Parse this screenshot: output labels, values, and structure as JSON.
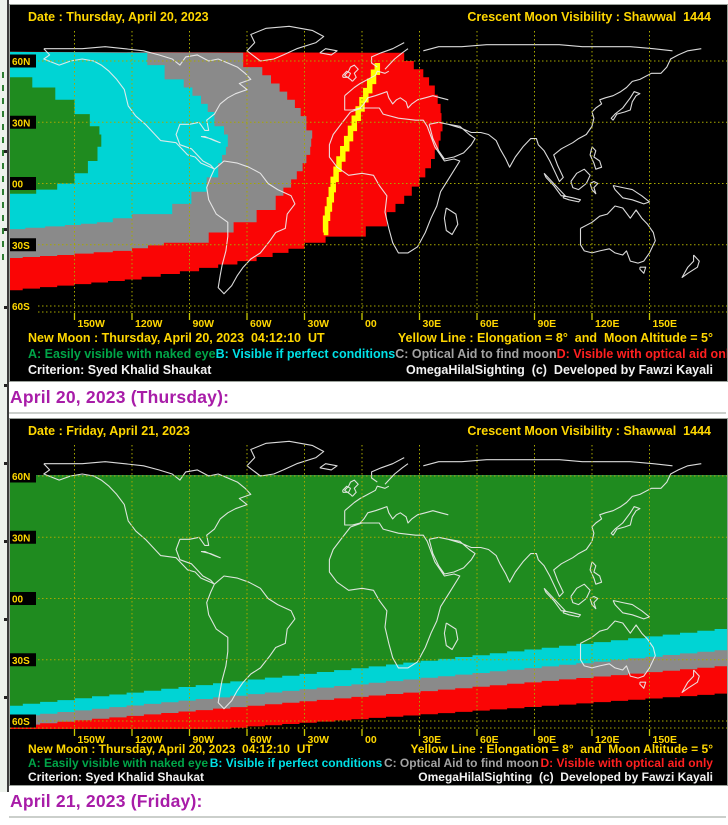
{
  "page": {
    "background": "#ffffff"
  },
  "maps": [
    {
      "header": {
        "date": "Date : Thursday, April 20, 2023",
        "title": "Crescent Moon Visibility : Shawwal  1444"
      },
      "caption": "April 20, 2023 (Thursday):"
    },
    {
      "header": {
        "date": "Date : Friday, April 21, 2023",
        "title": "Crescent Moon Visibility : Shawwal  1444"
      },
      "caption": "April 21, 2023 (Friday):"
    }
  ],
  "footer": {
    "new_moon": "New Moon : Thursday, April 20, 2023  04:12:10  UT",
    "yellow_line": "Yellow Line : Elongation = 8°  and  Moon Altitude = 5°",
    "legend": [
      {
        "key": "A",
        "label": "A: Easily visible with naked eye",
        "color": "#00a548"
      },
      {
        "key": "B",
        "label": "B: Visible if perfect conditions",
        "color": "#00e0e6"
      },
      {
        "key": "C",
        "label": "C: Optical Aid to find moon",
        "color": "#a2a2a2"
      },
      {
        "key": "D",
        "label": "D: Visible with optical aid only",
        "color": "#ff2020"
      }
    ],
    "criterion": "Criterion: Syed Khalid Shaukat",
    "credit": "OmegaHilalSighting  (c)  Developed by Fawzi Kayali"
  },
  "axes": {
    "latitudes": [
      "60N",
      "30N",
      "00",
      "30S",
      "60S"
    ],
    "longitudes": [
      "150W",
      "120W",
      "90W",
      "60W",
      "30W",
      "00",
      "30E",
      "60E",
      "90E",
      "120E",
      "150E"
    ]
  },
  "zone_colors": {
    "easy_naked_eye": "#1f8b1f",
    "perfect_conditions": "#00d4d4",
    "optical_aid_find": "#8a8a8a",
    "optical_aid_only": "#fa0505",
    "not_visible": "#000000",
    "yellow_line": "#ffff00",
    "grid": "#a8a800",
    "axis_label": "#ffd700",
    "coastline": "#ededed"
  }
}
